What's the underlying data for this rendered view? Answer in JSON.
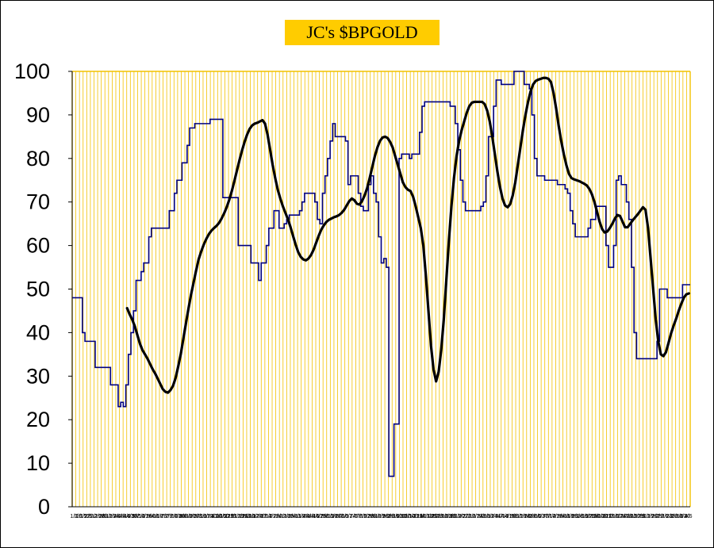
{
  "chart_data": {
    "type": "line",
    "title": "JC's $BPGOLD",
    "ylim": [
      0,
      100
    ],
    "yticks": [
      0,
      10,
      20,
      30,
      40,
      50,
      60,
      70,
      80,
      90,
      100
    ],
    "grid": "vertical",
    "colors": {
      "plot_background": "#ffffff",
      "gridline": "#f2c200",
      "title_background": "#ffcc00",
      "raw_series": "#000080",
      "smoothed_series": "#000000"
    },
    "xtick_labels": [
      "1/1",
      "1/6",
      "1/15",
      "1/22",
      "2/5",
      "2/12",
      "2/19",
      "2/26",
      "3/5",
      "3/12",
      "3/19",
      "3/26",
      "4/2",
      "4/9",
      "4/16",
      "4/23",
      "4/30",
      "5/7",
      "5/14",
      "5/21",
      "5/28",
      "6/4",
      "6/11",
      "6/18",
      "6/25",
      "7/2",
      "7/9",
      "7/16",
      "7/23",
      "7/30",
      "8/6",
      "8/13",
      "8/20",
      "8/27",
      "9/3",
      "9/10",
      "9/17",
      "9/24",
      "10/1",
      "10/8",
      "10/15",
      "10/22",
      "10/29",
      "11/5",
      "11/12",
      "11/19",
      "11/26",
      "12/3",
      "12/10",
      "12/17",
      "12/24",
      "12/31",
      "1/7",
      "1/14",
      "1/21",
      "1/28",
      "2/4",
      "2/11",
      "2/18",
      "2/25",
      "3/4",
      "3/11",
      "3/18",
      "3/25",
      "4/1",
      "4/8",
      "4/15",
      "4/22",
      "4/29",
      "5/6",
      "5/13",
      "5/20",
      "5/27",
      "6/3",
      "6/10",
      "6/17",
      "6/24",
      "7/1",
      "7/8",
      "7/15",
      "7/22",
      "7/29",
      "8/5",
      "8/12",
      "8/19",
      "8/26",
      "9/2",
      "9/9",
      "9/16",
      "9/23",
      "9/30",
      "10/7",
      "10/14",
      "10/21",
      "10/28",
      "11/4",
      "11/11",
      "11/18",
      "11/25",
      "12/2",
      "12/9",
      "12/16",
      "12/23",
      "12/30",
      "1/6",
      "1/13",
      "1/20",
      "1/27",
      "2/3",
      "2/10",
      "2/17",
      "2/24",
      "3/3",
      "3/10",
      "3/17",
      "3/24",
      "3/31",
      "4/7",
      "4/14",
      "4/21",
      "4/28",
      "5/5",
      "5/12",
      "5/19",
      "5/26",
      "6/2",
      "6/9",
      "6/16",
      "6/23",
      "6/30",
      "7/7",
      "7/14",
      "7/21",
      "7/28",
      "8/4",
      "8/11",
      "8/18",
      "8/25",
      "9/1",
      "9/8",
      "9/15",
      "9/22",
      "9/29",
      "10/6",
      "10/13",
      "10/20",
      "10/27",
      "11/3",
      "11/10",
      "11/17",
      "11/24",
      "12/1",
      "12/8",
      "12/15",
      "12/22",
      "12/29",
      "1/5",
      "1/12",
      "1/19",
      "1/26",
      "2/2",
      "2/9",
      "2/16",
      "2/23",
      "3/2",
      "3/9",
      "3/16",
      "3/23",
      "3/30",
      "4/6"
    ],
    "series": [
      {
        "style": "step",
        "values": [
          48,
          48,
          48,
          48,
          40,
          38,
          38,
          38,
          38,
          32,
          32,
          32,
          32,
          32,
          32,
          28,
          28,
          28,
          23,
          24,
          23,
          28,
          35,
          40,
          45,
          52,
          52,
          54,
          56,
          56,
          62,
          64,
          64,
          64,
          64,
          64,
          64,
          64,
          68,
          68,
          72,
          75,
          75,
          79,
          79,
          83,
          87,
          87,
          88,
          88,
          88,
          88,
          88,
          88,
          89,
          89,
          89,
          89,
          89,
          71,
          71,
          71,
          71,
          71,
          71,
          60,
          60,
          60,
          60,
          60,
          56,
          56,
          56,
          52,
          56,
          56,
          60,
          64,
          64,
          68,
          68,
          64,
          64,
          65,
          66,
          67,
          67,
          67,
          67,
          68,
          70,
          72,
          72,
          72,
          72,
          70,
          66,
          65,
          72,
          76,
          80,
          84,
          88,
          85,
          85,
          85,
          85,
          84,
          74,
          76,
          76,
          76,
          72,
          69,
          68,
          68,
          74,
          76,
          72,
          70,
          62,
          56,
          57,
          55,
          7,
          7,
          19,
          19,
          80,
          81,
          81,
          81,
          80,
          81,
          81,
          81,
          86,
          92,
          93,
          93,
          93,
          93,
          93,
          93,
          93,
          93,
          93,
          93,
          92,
          92,
          88,
          82,
          75,
          70,
          68,
          68,
          68,
          68,
          68,
          68,
          69,
          70,
          76,
          85,
          85,
          92,
          98,
          98,
          97,
          97,
          97,
          97,
          97,
          100,
          100,
          100,
          100,
          97,
          97,
          96,
          90,
          80,
          76,
          76,
          76,
          75,
          75,
          75,
          75,
          75,
          74,
          74,
          74,
          73,
          72,
          68,
          65,
          62,
          62,
          62,
          62,
          62,
          64,
          66,
          66,
          69,
          69,
          69,
          69,
          60,
          55,
          55,
          60,
          75,
          76,
          74,
          74,
          70,
          66,
          55,
          40,
          34,
          34,
          34,
          34,
          34,
          34,
          34,
          34,
          38,
          50,
          50,
          50,
          48,
          48,
          48,
          48,
          48,
          48,
          51,
          51,
          51
        ]
      },
      {
        "style": "smooth",
        "values": [
          45.6,
          44.2,
          43,
          41.5,
          39.5,
          37.5,
          36,
          35,
          34,
          32.8,
          31.6,
          30.6,
          29.4,
          28.2,
          27,
          26.4,
          26.2,
          26.8,
          27.8,
          29.6,
          32.2,
          35,
          38.5,
          42,
          45.4,
          48.6,
          51.4,
          54.2,
          56.8,
          58.6,
          60.2,
          61.5,
          62.6,
          63.4,
          64,
          64.5,
          65.2,
          66.2,
          67.4,
          68.8,
          70.5,
          72.5,
          74.8,
          77.2,
          79.6,
          81.8,
          83.8,
          85.5,
          86.8,
          87.6,
          88,
          88.2,
          88.5,
          88.8,
          88,
          85.5,
          82,
          78.5,
          75.5,
          72.8,
          70.8,
          69,
          67.5,
          66,
          64.2,
          62.2,
          60.2,
          58.5,
          57.4,
          56.8,
          56.6,
          57,
          57.8,
          59,
          60.6,
          62.2,
          63.6,
          64.6,
          65.4,
          65.9,
          66.2,
          66.5,
          66.7,
          67,
          67.5,
          68.2,
          69.2,
          70.2,
          70.8,
          70.4,
          69.6,
          69.4,
          70.2,
          71.5,
          73.2,
          75.5,
          78,
          80.5,
          82.5,
          84,
          84.8,
          85,
          84.7,
          83.8,
          82.5,
          80.5,
          78.5,
          76.5,
          74.5,
          73.4,
          72.8,
          72.5,
          71.2,
          69,
          66.5,
          64,
          60,
          53,
          45,
          37,
          31.5,
          28.8,
          31,
          36,
          43,
          52,
          61,
          69,
          75.5,
          80.5,
          84,
          86.5,
          88.5,
          90.5,
          92,
          92.8,
          93,
          93,
          93,
          93,
          92.5,
          91,
          88.5,
          85,
          81,
          77,
          73.5,
          70.8,
          69.2,
          68.8,
          69.5,
          71.5,
          74.5,
          78.5,
          82.5,
          86.5,
          90,
          93,
          95.4,
          97,
          97.8,
          98.1,
          98.3,
          98.5,
          98.5,
          98.3,
          97.5,
          95,
          91.5,
          87.5,
          84,
          81,
          78.5,
          76.5,
          75.5,
          75.2,
          75,
          74.8,
          74.5,
          74.2,
          73.8,
          73,
          71.8,
          70,
          67.8,
          65.5,
          63.8,
          63,
          63.2,
          64,
          65,
          66.2,
          67,
          66.8,
          65.5,
          64.2,
          64.2,
          65,
          65.8,
          66.5,
          67.2,
          68,
          68.8,
          68.2,
          64,
          57,
          50,
          43,
          38,
          35,
          34.6,
          35.5,
          37.6,
          39.8,
          41.6,
          43.2,
          45,
          46.6,
          48,
          48.8,
          49
        ]
      }
    ]
  }
}
